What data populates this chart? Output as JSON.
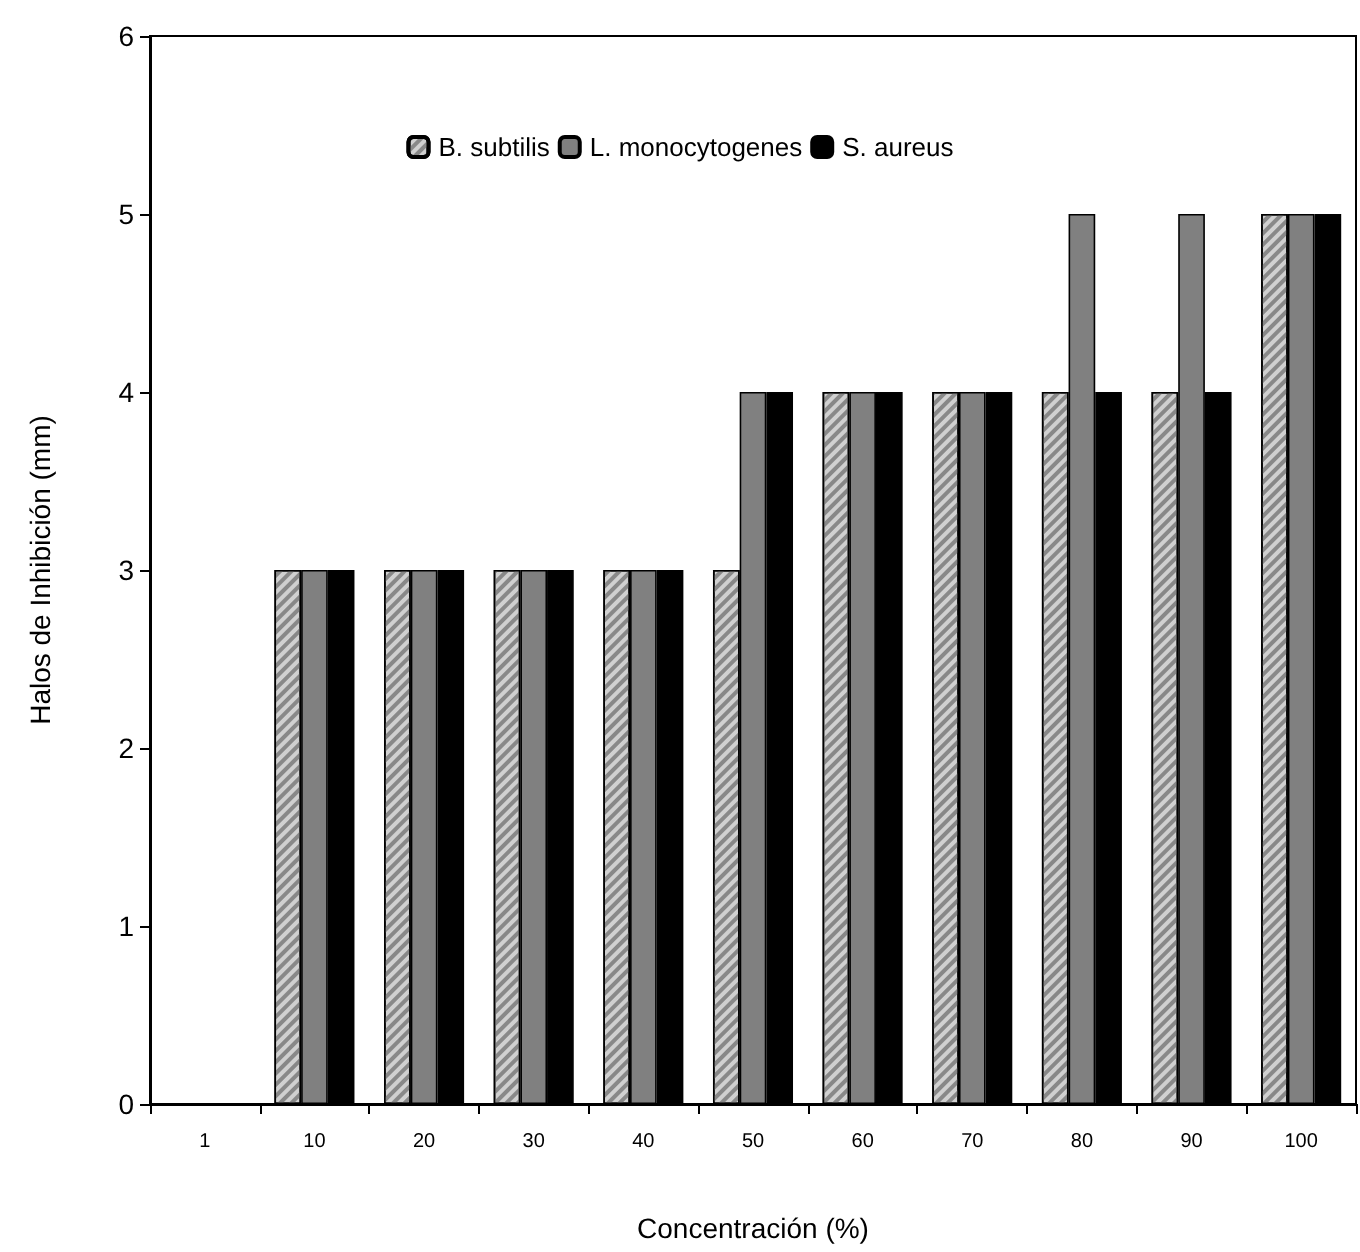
{
  "chart_data": {
    "type": "bar",
    "xlabel": "Concentración (%)",
    "ylabel": "Halos de Inhibición (mm)",
    "categories": [
      "1",
      "10",
      "20",
      "30",
      "40",
      "50",
      "60",
      "70",
      "80",
      "90",
      "100"
    ],
    "series": [
      {
        "name": "B. subtilis",
        "color": "#d0d0d0",
        "values": [
          0,
          3,
          3,
          3,
          3,
          3,
          4,
          4,
          4,
          4,
          5
        ]
      },
      {
        "name": "L. monocytogenes",
        "color": "#808080",
        "values": [
          0,
          3,
          3,
          3,
          3,
          4,
          4,
          4,
          5,
          5,
          5
        ]
      },
      {
        "name": "S. aureus",
        "color": "#000000",
        "values": [
          0,
          3,
          3,
          3,
          3,
          4,
          4,
          4,
          4,
          4,
          5
        ]
      }
    ],
    "ylim": [
      0,
      6
    ],
    "yticks": [
      0,
      1,
      2,
      3,
      4,
      5,
      6
    ],
    "grid": false,
    "legend": "top"
  }
}
